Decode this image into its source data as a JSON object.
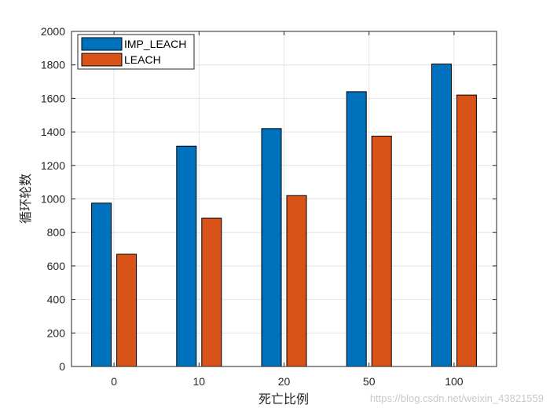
{
  "chart_data": {
    "type": "bar",
    "xlabel": "死亡比例",
    "ylabel": "循环轮数",
    "categories": [
      "0",
      "10",
      "20",
      "50",
      "100"
    ],
    "series": [
      {
        "name": "IMP_LEACH",
        "color": "#0072BD",
        "values": [
          975,
          1315,
          1420,
          1640,
          1805
        ]
      },
      {
        "name": "LEACH",
        "color": "#D95319",
        "values": [
          670,
          885,
          1020,
          1375,
          1620
        ]
      }
    ],
    "ylim": [
      0,
      2000
    ],
    "yticks": [
      0,
      200,
      400,
      600,
      800,
      1000,
      1200,
      1400,
      1600,
      1800,
      2000
    ],
    "grid": true,
    "legend_position": "top-left"
  },
  "watermark": "https://blog.csdn.net/weixin_43821559"
}
